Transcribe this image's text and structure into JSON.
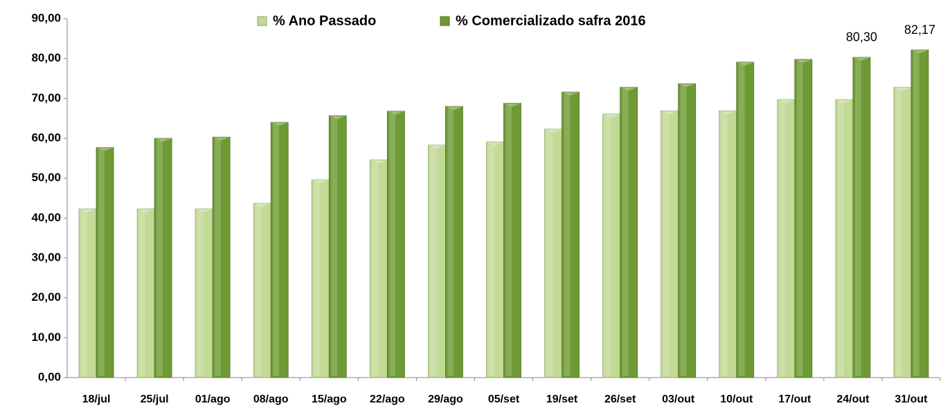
{
  "chart_data": {
    "type": "bar",
    "categories": [
      "18/jul",
      "25/jul",
      "01/ago",
      "08/ago",
      "15/ago",
      "22/ago",
      "29/ago",
      "05/set",
      "19/set",
      "26/set",
      "03/out",
      "10/out",
      "17/out",
      "24/out",
      "31/out"
    ],
    "series": [
      {
        "name": "% Ano Passado",
        "color": "#c3da96",
        "values": [
          42.3,
          42.3,
          42.3,
          43.7,
          49.6,
          54.6,
          58.3,
          59.1,
          62.3,
          66.1,
          66.9,
          66.9,
          69.7,
          69.7,
          72.8
        ]
      },
      {
        "name": "% Comercializado safra 2016",
        "color": "#6e9a34",
        "values": [
          57.7,
          60.0,
          60.3,
          64.0,
          65.7,
          66.8,
          68.0,
          68.8,
          71.6,
          72.8,
          73.7,
          79.1,
          79.8,
          80.3,
          82.17
        ],
        "value_labels": [
          null,
          null,
          null,
          null,
          null,
          null,
          null,
          null,
          null,
          null,
          null,
          null,
          null,
          "80,30",
          "82,17"
        ]
      }
    ],
    "ylim": [
      0,
      90
    ],
    "yticks": [
      {
        "value": 0,
        "label": "0,00"
      },
      {
        "value": 10,
        "label": "10,00"
      },
      {
        "value": 20,
        "label": "20,00"
      },
      {
        "value": 30,
        "label": "30,00"
      },
      {
        "value": 40,
        "label": "40,00"
      },
      {
        "value": 50,
        "label": "50,00"
      },
      {
        "value": 60,
        "label": "60,00"
      },
      {
        "value": 70,
        "label": "70,00"
      },
      {
        "value": 80,
        "label": "80,00"
      },
      {
        "value": 90,
        "label": "90,00"
      }
    ],
    "grid": false,
    "legend": "top"
  }
}
